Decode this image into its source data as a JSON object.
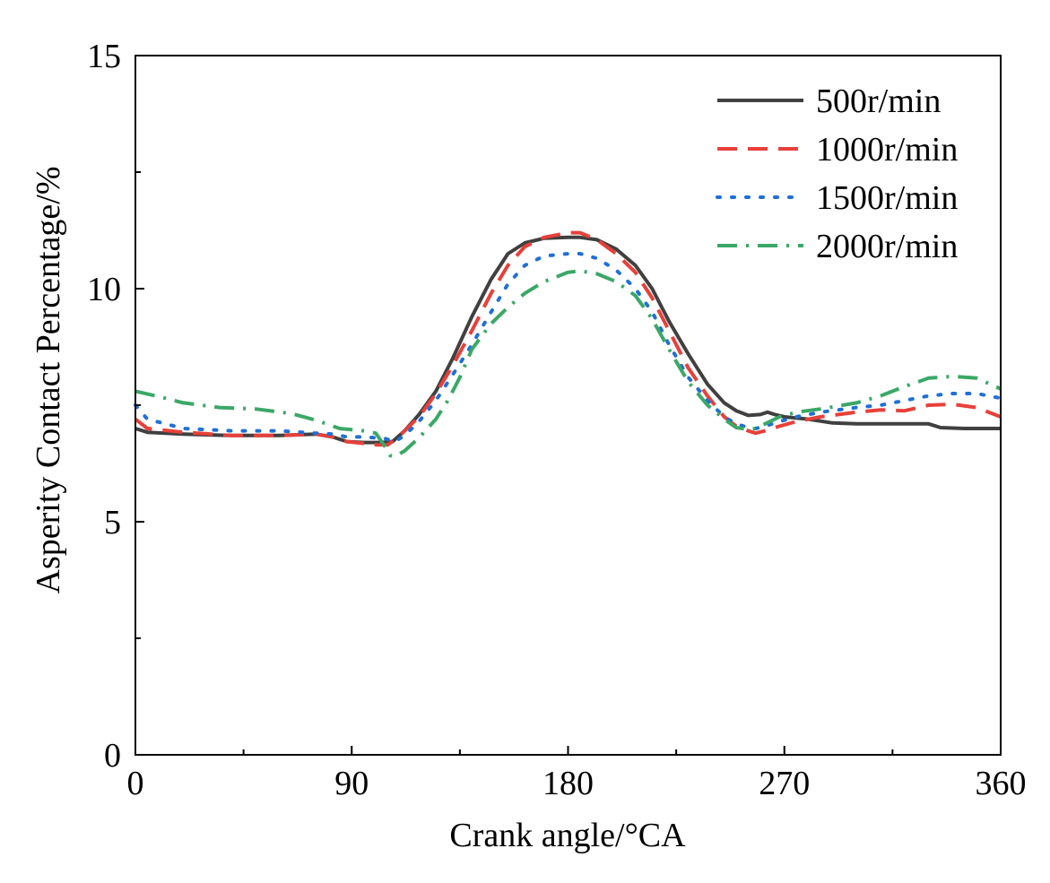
{
  "chart_data": {
    "type": "line",
    "title": "",
    "xlabel": "Crank angle/°CA",
    "ylabel": "Asperity Contact Percentage/%",
    "xlim": [
      0,
      360
    ],
    "ylim": [
      0,
      15
    ],
    "x_ticks": [
      0,
      90,
      180,
      270,
      360
    ],
    "x_tick_labels": [
      "0",
      "90",
      "180",
      "270",
      "360"
    ],
    "y_ticks": [
      0,
      5,
      10,
      15
    ],
    "y_tick_labels": [
      "0",
      "5",
      "10",
      "15"
    ],
    "x_minor_ticks": [
      45,
      135,
      225,
      315
    ],
    "y_minor_ticks": [
      2.5,
      7.5,
      12.5
    ],
    "grid": false,
    "legend_position": "top-right",
    "series": [
      {
        "name": "500r/min",
        "color": "#404040",
        "dash": "solid",
        "x": [
          0,
          5,
          20,
          40,
          60,
          75,
          82,
          88,
          95,
          102,
          107,
          112,
          118,
          125,
          132,
          140,
          148,
          155,
          162,
          170,
          180,
          185,
          192,
          200,
          208,
          215,
          222,
          230,
          238,
          245,
          250,
          255,
          260,
          263,
          266,
          270,
          280,
          290,
          300,
          320,
          330,
          335,
          345,
          360
        ],
        "y": [
          7.0,
          6.92,
          6.88,
          6.85,
          6.85,
          6.88,
          6.82,
          6.72,
          6.7,
          6.7,
          6.72,
          6.95,
          7.3,
          7.8,
          8.5,
          9.4,
          10.2,
          10.75,
          10.98,
          11.08,
          11.1,
          11.1,
          11.05,
          10.85,
          10.5,
          10.0,
          9.3,
          8.6,
          7.95,
          7.55,
          7.38,
          7.28,
          7.3,
          7.35,
          7.3,
          7.25,
          7.2,
          7.12,
          7.1,
          7.1,
          7.1,
          7.02,
          7.0,
          7.0
        ]
      },
      {
        "name": "1000r/min",
        "color": "#e8403a",
        "dash": "dashed",
        "x": [
          0,
          5,
          20,
          40,
          60,
          75,
          82,
          88,
          95,
          100,
          105,
          110,
          118,
          125,
          132,
          140,
          148,
          155,
          162,
          170,
          180,
          185,
          192,
          200,
          208,
          215,
          222,
          230,
          238,
          245,
          250,
          255,
          258,
          262,
          268,
          275,
          285,
          300,
          310,
          320,
          330,
          340,
          350,
          360
        ],
        "y": [
          7.2,
          7.0,
          6.92,
          6.85,
          6.85,
          6.88,
          6.82,
          6.72,
          6.68,
          6.65,
          6.65,
          6.85,
          7.25,
          7.75,
          8.35,
          9.1,
          9.9,
          10.5,
          10.9,
          11.1,
          11.2,
          11.2,
          11.05,
          10.75,
          10.35,
          9.8,
          9.1,
          8.3,
          7.7,
          7.25,
          7.05,
          6.95,
          6.9,
          6.95,
          7.05,
          7.15,
          7.25,
          7.35,
          7.4,
          7.38,
          7.5,
          7.52,
          7.45,
          7.25
        ]
      },
      {
        "name": "1500r/min",
        "color": "#1f6fd8",
        "dash": "dotted",
        "x": [
          0,
          5,
          20,
          40,
          60,
          75,
          82,
          88,
          95,
          100,
          104,
          108,
          112,
          118,
          125,
          132,
          140,
          148,
          155,
          162,
          170,
          180,
          185,
          192,
          200,
          208,
          215,
          222,
          230,
          238,
          245,
          250,
          255,
          258,
          262,
          268,
          275,
          285,
          300,
          310,
          320,
          330,
          340,
          350,
          360
        ],
        "y": [
          7.5,
          7.2,
          7.0,
          6.95,
          6.95,
          6.9,
          6.88,
          6.82,
          6.82,
          6.8,
          6.78,
          6.72,
          6.85,
          7.15,
          7.6,
          8.15,
          8.8,
          9.5,
          10.1,
          10.5,
          10.7,
          10.75,
          10.75,
          10.65,
          10.4,
          10.0,
          9.5,
          8.8,
          8.1,
          7.6,
          7.25,
          7.1,
          7.02,
          7.0,
          7.05,
          7.15,
          7.25,
          7.35,
          7.45,
          7.5,
          7.6,
          7.7,
          7.75,
          7.75,
          7.65
        ]
      },
      {
        "name": "2000r/min",
        "color": "#3aa866",
        "dash": "dashdot",
        "x": [
          0,
          10,
          20,
          35,
          50,
          65,
          75,
          85,
          95,
          100,
          104,
          106,
          108,
          112,
          118,
          125,
          130,
          135,
          140,
          148,
          155,
          162,
          170,
          180,
          185,
          192,
          200,
          208,
          215,
          222,
          230,
          238,
          245,
          250,
          255,
          258,
          262,
          268,
          275,
          285,
          300,
          310,
          320,
          330,
          340,
          350,
          360
        ],
        "y": [
          7.8,
          7.68,
          7.55,
          7.45,
          7.42,
          7.32,
          7.18,
          7.0,
          6.95,
          6.9,
          6.6,
          6.42,
          6.4,
          6.52,
          6.8,
          7.2,
          7.6,
          8.1,
          8.7,
          9.25,
          9.6,
          9.9,
          10.15,
          10.35,
          10.38,
          10.32,
          10.15,
          9.85,
          9.35,
          8.7,
          8.0,
          7.5,
          7.2,
          7.02,
          6.98,
          7.0,
          7.1,
          7.25,
          7.35,
          7.42,
          7.55,
          7.7,
          7.9,
          8.08,
          8.12,
          8.08,
          7.85
        ]
      }
    ]
  }
}
